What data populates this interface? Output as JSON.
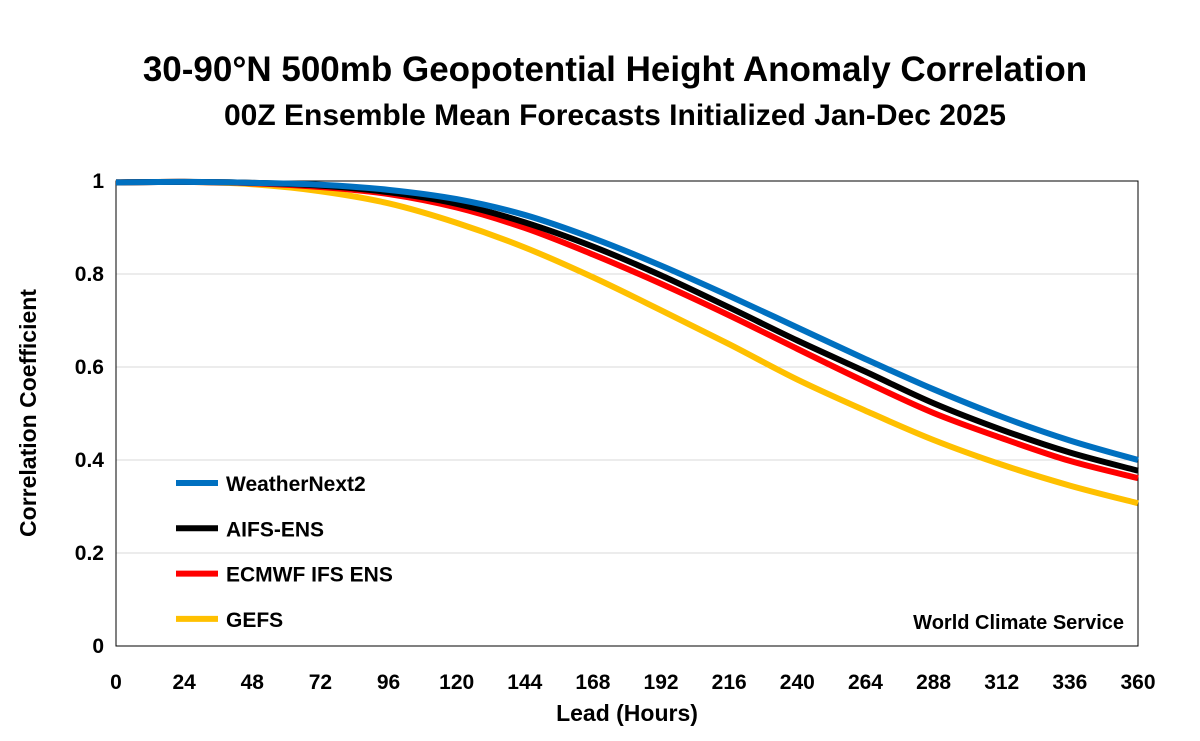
{
  "chart_data": {
    "type": "line",
    "title": "30-90°N 500mb Geopotential Height Anomaly Correlation",
    "subtitle": "00Z Ensemble Mean Forecasts Initialized Jan-Dec 2025",
    "xlabel": "Lead (Hours)",
    "ylabel": "Correlation Coefficient",
    "x": [
      0,
      24,
      48,
      72,
      96,
      120,
      144,
      168,
      192,
      216,
      240,
      264,
      288,
      312,
      336,
      360
    ],
    "x_ticks": [
      "0",
      "24",
      "48",
      "72",
      "96",
      "120",
      "144",
      "168",
      "192",
      "216",
      "240",
      "264",
      "288",
      "312",
      "336",
      "360"
    ],
    "y_ticks": [
      "0",
      "0.2",
      "0.4",
      "0.6",
      "0.8",
      "1"
    ],
    "xlim": [
      0,
      360
    ],
    "ylim": [
      0,
      1
    ],
    "grid": "horizontal",
    "legend_position": "bottom-left",
    "annotation": "World Climate Service",
    "series": [
      {
        "name": "WeatherNext2",
        "color": "#0070C0",
        "values": [
          0.997,
          0.998,
          0.996,
          0.992,
          0.981,
          0.961,
          0.927,
          0.877,
          0.818,
          0.753,
          0.685,
          0.617,
          0.552,
          0.493,
          0.442,
          0.4
        ]
      },
      {
        "name": "AIFS-ENS",
        "color": "#000000",
        "values": [
          0.997,
          0.998,
          0.996,
          0.99,
          0.976,
          0.951,
          0.911,
          0.859,
          0.797,
          0.728,
          0.657,
          0.59,
          0.522,
          0.465,
          0.416,
          0.377
        ]
      },
      {
        "name": "ECMWF IFS ENS",
        "color": "#FF0000",
        "values": [
          0.997,
          0.998,
          0.995,
          0.987,
          0.972,
          0.943,
          0.899,
          0.842,
          0.779,
          0.711,
          0.639,
          0.568,
          0.501,
          0.447,
          0.398,
          0.361
        ]
      },
      {
        "name": "GEFS",
        "color": "#FFC000",
        "values": [
          0.997,
          0.998,
          0.993,
          0.978,
          0.952,
          0.91,
          0.857,
          0.793,
          0.722,
          0.649,
          0.573,
          0.506,
          0.443,
          0.39,
          0.345,
          0.307
        ]
      }
    ]
  }
}
